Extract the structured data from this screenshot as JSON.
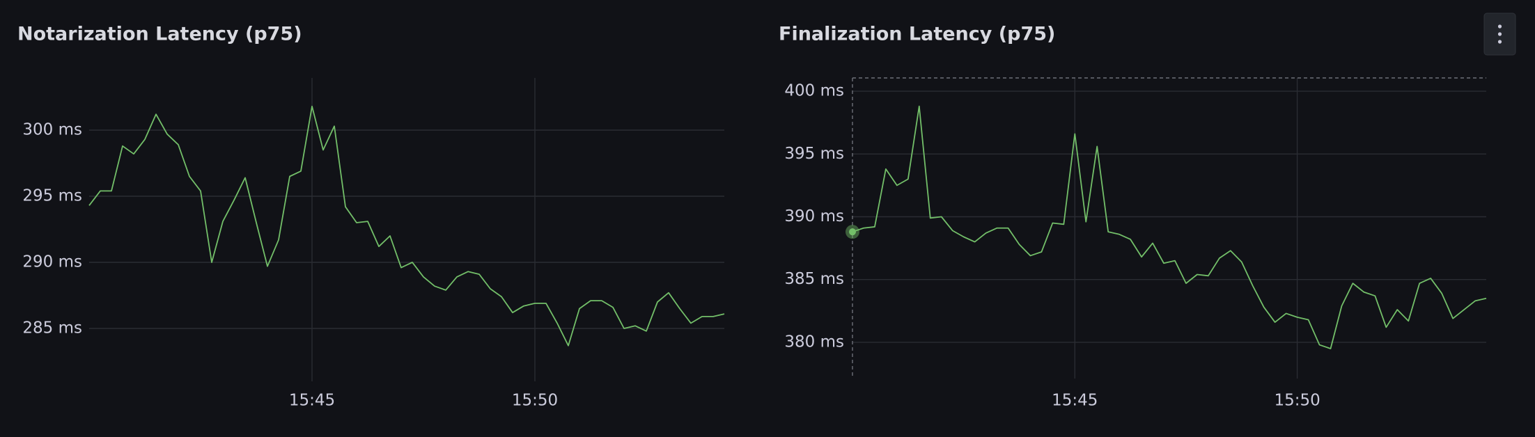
{
  "chart_data": [
    {
      "type": "line",
      "title": "Notarization Latency (p75)",
      "color": "#73bf69",
      "x": [
        940,
        940.25,
        940.5,
        940.75,
        941,
        941.25,
        941.5,
        941.75,
        942,
        942.25,
        942.5,
        942.75,
        943,
        943.25,
        943.5,
        943.75,
        944,
        944.25,
        944.5,
        944.75,
        945,
        945.25,
        945.5,
        945.75,
        946,
        946.25,
        946.5,
        946.75,
        947,
        947.25,
        947.5,
        947.75,
        948,
        948.25,
        948.5,
        948.75,
        949,
        949.25,
        949.5,
        949.75,
        950,
        950.25,
        950.5,
        950.75,
        951,
        951.25,
        951.5,
        951.75,
        952,
        952.25,
        952.5,
        952.75,
        953,
        953.25,
        953.5,
        953.75,
        954,
        954.25
      ],
      "values": [
        294.3,
        295.4,
        295.4,
        298.8,
        298.2,
        299.3,
        301.2,
        299.7,
        298.9,
        296.5,
        295.4,
        290.0,
        293.1,
        294.7,
        296.4,
        293.0,
        289.7,
        291.7,
        296.5,
        296.9,
        301.8,
        298.5,
        300.3,
        294.2,
        293.0,
        293.1,
        291.2,
        292.0,
        289.6,
        290.0,
        288.9,
        288.2,
        287.9,
        288.9,
        289.3,
        289.1,
        288.0,
        287.4,
        286.2,
        286.7,
        286.9,
        286.9,
        285.4,
        283.7,
        286.5,
        287.1,
        287.1,
        286.6,
        285.0,
        285.2,
        284.8,
        287.0,
        287.7,
        286.5,
        285.4,
        285.9,
        285.9,
        286.1
      ],
      "xlim": [
        940,
        954.25
      ],
      "xticks": [
        {
          "value": 945,
          "label": "15:45"
        },
        {
          "value": 950,
          "label": "15:50"
        }
      ],
      "ylim": [
        282,
        304
      ],
      "yticks": [
        {
          "value": 285,
          "label": "285 ms"
        },
        {
          "value": 290,
          "label": "290 ms"
        },
        {
          "value": 295,
          "label": "295 ms"
        },
        {
          "value": 300,
          "label": "300 ms"
        }
      ],
      "grid": true
    },
    {
      "type": "line",
      "title": "Finalization Latency (p75)",
      "color": "#73bf69",
      "x": [
        940,
        940.25,
        940.5,
        940.75,
        941,
        941.25,
        941.5,
        941.75,
        942,
        942.25,
        942.5,
        942.75,
        943,
        943.25,
        943.5,
        943.75,
        944,
        944.25,
        944.5,
        944.75,
        945,
        945.25,
        945.5,
        945.75,
        946,
        946.25,
        946.5,
        946.75,
        947,
        947.25,
        947.5,
        947.75,
        948,
        948.25,
        948.5,
        948.75,
        949,
        949.25,
        949.5,
        949.75,
        950,
        950.25,
        950.5,
        950.75,
        951,
        951.25,
        951.5,
        951.75,
        952,
        952.25,
        952.5,
        952.75,
        953,
        953.25,
        953.5,
        953.75,
        954,
        954.25
      ],
      "values": [
        388.8,
        389.1,
        389.2,
        393.8,
        392.5,
        393.0,
        398.8,
        389.9,
        390.0,
        388.9,
        388.4,
        388.0,
        388.7,
        389.1,
        389.1,
        387.8,
        386.9,
        387.2,
        389.5,
        389.4,
        396.6,
        389.6,
        395.6,
        388.8,
        388.6,
        388.2,
        386.8,
        387.9,
        386.3,
        386.5,
        384.7,
        385.4,
        385.3,
        386.7,
        387.3,
        386.4,
        384.5,
        382.8,
        381.6,
        382.3,
        382.0,
        381.8,
        379.8,
        379.5,
        382.9,
        384.7,
        384.0,
        383.7,
        381.2,
        382.6,
        381.7,
        384.7,
        385.1,
        383.9,
        381.9,
        382.6,
        383.3,
        383.5
      ],
      "xlim": [
        940,
        954.25
      ],
      "xticks": [
        {
          "value": 945,
          "label": "15:45"
        },
        {
          "value": 950,
          "label": "15:50"
        }
      ],
      "ylim": [
        379,
        401
      ],
      "yticks": [
        {
          "value": 380,
          "label": "380 ms"
        },
        {
          "value": 385,
          "label": "385 ms"
        },
        {
          "value": 390,
          "label": "390 ms"
        },
        {
          "value": 395,
          "label": "395 ms"
        },
        {
          "value": 400,
          "label": "400 ms"
        }
      ],
      "grid": true
    }
  ]
}
